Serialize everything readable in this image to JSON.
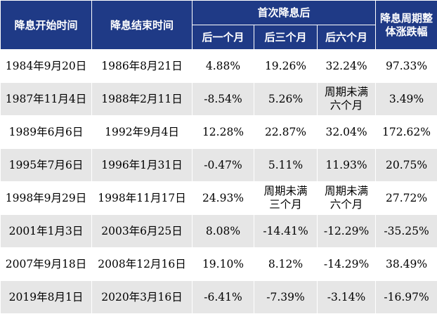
{
  "header": {
    "start_label": "降息开始时间",
    "end_label": "降息结束时间",
    "group_label": "首次降息后",
    "sub1": "后一个月",
    "sub3": "后三个月",
    "sub6": "后六个月",
    "overall_label": "降息周期整体涨跌幅"
  },
  "rows": [
    {
      "start": "1984年9月20日",
      "end": "1986年8月21日",
      "m1": "4.88%",
      "m3": "19.26%",
      "m6": "32.24%",
      "overall": "97.33%"
    },
    {
      "start": "1987年11月4日",
      "end": "1988年2月11日",
      "m1": "-8.54%",
      "m3": "5.26%",
      "m6": "周期未满\n六个月",
      "overall": "3.49%"
    },
    {
      "start": "1989年6月6日",
      "end": "1992年9月4日",
      "m1": "12.28%",
      "m3": "22.87%",
      "m6": "32.04%",
      "overall": "172.62%"
    },
    {
      "start": "1995年7月6日",
      "end": "1996年1月31日",
      "m1": "-0.47%",
      "m3": "5.11%",
      "m6": "11.93%",
      "overall": "20.75%"
    },
    {
      "start": "1998年9月29日",
      "end": "1998年11月17日",
      "m1": "24.93%",
      "m3": "周期未满\n三个月",
      "m6": "周期未满\n六个月",
      "overall": "27.72%"
    },
    {
      "start": "2001年1月3日",
      "end": "2003年6月25日",
      "m1": "8.08%",
      "m3": "-14.41%",
      "m6": "-12.29%",
      "overall": "-35.25%"
    },
    {
      "start": "2007年9月18日",
      "end": "2008年12月16日",
      "m1": "19.10%",
      "m3": "8.12%",
      "m6": "-14.29%",
      "overall": "38.49%"
    },
    {
      "start": "2019年8月1日",
      "end": "2020年3月16日",
      "m1": "-6.41%",
      "m3": "-7.39%",
      "m6": "-3.14%",
      "overall": "-16.97%"
    }
  ],
  "colors": {
    "header_bg": "#1f3a86",
    "header_text": "#ffffff",
    "row_alt_bg": "#e6e6e6"
  }
}
